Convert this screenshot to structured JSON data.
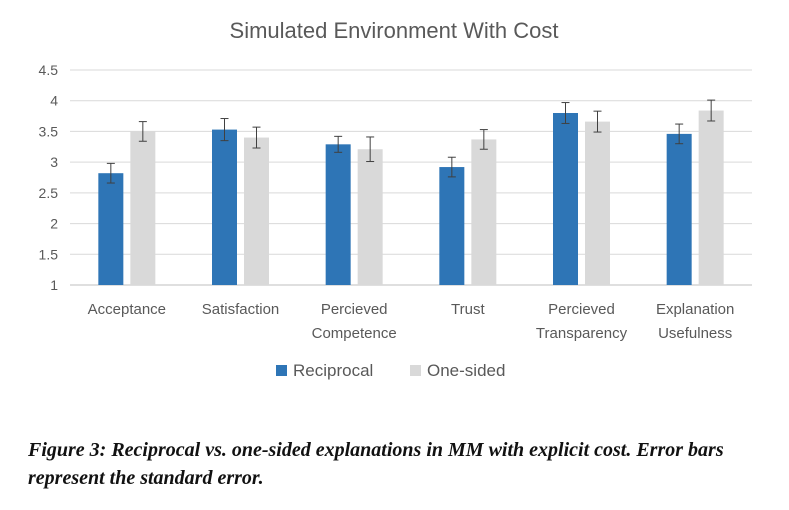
{
  "chart_data": {
    "type": "bar",
    "title": "Simulated Environment With Cost",
    "categories": [
      [
        "Acceptance"
      ],
      [
        "Satisfaction"
      ],
      [
        "Percieved",
        "Competence"
      ],
      [
        "Trust"
      ],
      [
        "Percieved",
        "Transparency"
      ],
      [
        "Explanation",
        "Usefulness"
      ]
    ],
    "series": [
      {
        "name": "Reciprocal",
        "color": "#2E75B6",
        "values": [
          2.82,
          3.53,
          3.29,
          2.92,
          3.8,
          3.46
        ],
        "errors": [
          0.16,
          0.18,
          0.13,
          0.16,
          0.17,
          0.16
        ]
      },
      {
        "name": "One-sided",
        "color": "#D9D9D9",
        "values": [
          3.5,
          3.4,
          3.21,
          3.37,
          3.66,
          3.84
        ],
        "errors": [
          0.16,
          0.17,
          0.2,
          0.16,
          0.17,
          0.17
        ]
      }
    ],
    "yticks": [
      "1",
      "1.5",
      "2",
      "2.5",
      "3",
      "3.5",
      "4",
      "4.5"
    ],
    "ylim": [
      1,
      4.5
    ],
    "grid": true,
    "legend": "bottom"
  },
  "caption": "Figure 3: Reciprocal vs. one-sided explanations in MM with explicit cost. Error bars represent the standard error."
}
